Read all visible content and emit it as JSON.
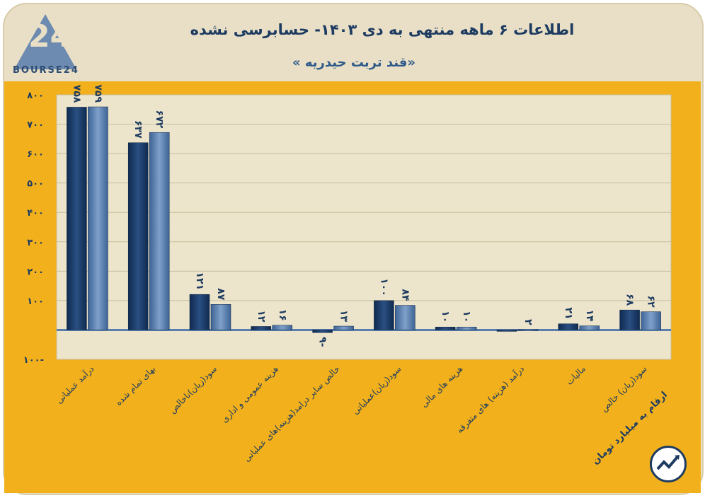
{
  "header": {
    "title": "اطلاعات ۶ ماهه منتهی به دی ۱۴۰۳- حسابرسی نشده",
    "subtitle": "«قند تربت حیدریه »"
  },
  "logo": {
    "mark": "24",
    "text": "BOURSE24",
    "icon": "bourse24-logo-icon"
  },
  "note": {
    "text": "ارقام به میلیارد تومان",
    "icon": "trend-chart-icon"
  },
  "colors": {
    "series1": "#1d3b66",
    "series2": "#5b7fad",
    "background": "#f2b11c",
    "plot": "#ece4cb"
  },
  "chart_data": {
    "type": "bar",
    "title": "اطلاعات ۶ ماهه منتهی به دی ۱۴۰۳- حسابرسی نشده",
    "ylim": [
      -100,
      800
    ],
    "yticks": [
      -100,
      100,
      200,
      300,
      400,
      500,
      600,
      700,
      800
    ],
    "ytick_labels": [
      "۱۰۰-",
      "۱۰۰",
      "۲۰۰",
      "۳۰۰",
      "۴۰۰",
      "۵۰۰",
      "۶۰۰",
      "۷۰۰",
      "۸۰۰"
    ],
    "grid": true,
    "categories": [
      "درآمد عملیاتی",
      "بهای تمام شده",
      "سود(زیان)ناخالص",
      "هزینه عمومی و اداری",
      "خالص سایر درامد(هزینه)های عملیاتی",
      "سود(زیان)عملیاتی",
      "هزینه های مالی",
      "درآمد (هزینه) های متفرقه",
      "مالیات",
      "سود(زیان) خالص"
    ],
    "series": [
      {
        "values": [
          758,
          637,
          121,
          12,
          -9,
          100,
          10,
          -3,
          21,
          68
        ],
        "labels": [
          "۷۵۸",
          "۶۳۷",
          "۱۲۱",
          "۱۲",
          "۹-",
          "۱۰۰",
          "۱۰",
          "",
          "۲۱",
          "۶۸"
        ]
      },
      {
        "values": [
          759,
          672,
          87,
          16,
          13,
          84,
          10,
          2,
          14,
          62
        ],
        "labels": [
          "۷۵۹",
          "۶۷۲",
          "۸۷",
          "۱۶",
          "۱۳",
          "۸۴",
          "۱۰",
          "۲",
          "۱۴",
          "۶۲"
        ]
      }
    ]
  }
}
